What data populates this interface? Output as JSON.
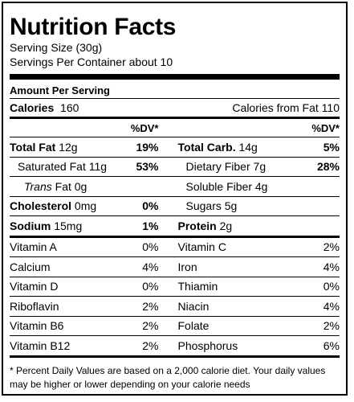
{
  "title": "Nutrition Facts",
  "serving_size": "Serving Size (30g)",
  "servings_per_container": "Servings Per Container about 10",
  "amount_per_serving": "Amount Per Serving",
  "calories_label": "Calories",
  "calories_value": "160",
  "calories_from_fat": "Calories from Fat 110",
  "dv_header": "%DV*",
  "nutrients_left": [
    {
      "label": "Total Fat",
      "amount": "12g",
      "dv": "19%"
    },
    {
      "label": "Saturated Fat",
      "amount": "11g",
      "dv": "53%"
    },
    {
      "label": "Trans",
      "label_rest": " Fat",
      "amount": "0g",
      "dv": ""
    },
    {
      "label": "Cholesterol",
      "amount": "0mg",
      "dv": "0%"
    },
    {
      "label": "Sodium",
      "amount": "15mg",
      "dv": "1%"
    }
  ],
  "nutrients_right": [
    {
      "label": "Total Carb.",
      "amount": "14g",
      "dv": "5%"
    },
    {
      "label": "Dietary Fiber",
      "amount": "7g",
      "dv": "28%"
    },
    {
      "label": "Soluble Fiber",
      "amount": "4g",
      "dv": ""
    },
    {
      "label": "Sugars",
      "amount": "5g",
      "dv": ""
    },
    {
      "label": "Protein",
      "amount": "2g",
      "dv": ""
    }
  ],
  "vitamins": [
    {
      "l_name": "Vitamin A",
      "l_val": "0%",
      "r_name": "Vitamin C",
      "r_val": "2%"
    },
    {
      "l_name": "Calcium",
      "l_val": "4%",
      "r_name": "Iron",
      "r_val": "4%"
    },
    {
      "l_name": "Vitamin D",
      "l_val": "0%",
      "r_name": "Thiamin",
      "r_val": "0%"
    },
    {
      "l_name": "Riboflavin",
      "l_val": "2%",
      "r_name": "Niacin",
      "r_val": "4%"
    },
    {
      "l_name": "Vitamin B6",
      "l_val": "2%",
      "r_name": "Folate",
      "r_val": "2%"
    },
    {
      "l_name": "Vitamin B12",
      "l_val": "2%",
      "r_name": "Phosphorus",
      "r_val": "6%"
    }
  ],
  "footnote": "* Percent Daily Values are based on a 2,000 calorie diet. Your daily values may be higher or lower depending on your calorie needs"
}
